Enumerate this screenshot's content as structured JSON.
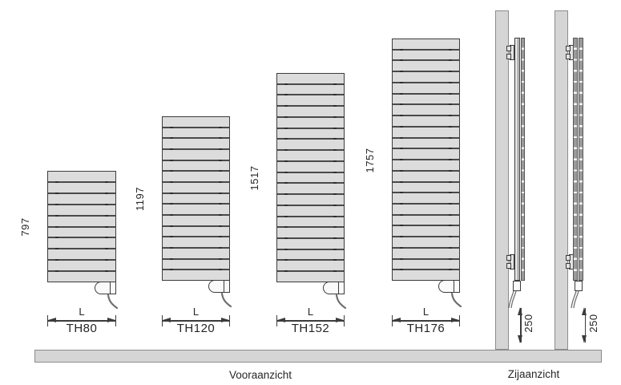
{
  "diagram": {
    "front_view_caption": "Vooraanzicht",
    "side_view_caption": "Zijaanzicht",
    "width_label": "L",
    "radiators": [
      {
        "model": "TH80",
        "height_mm": "797",
        "slats": 10
      },
      {
        "model": "TH120",
        "height_mm": "1197",
        "slats": 15
      },
      {
        "model": "TH152",
        "height_mm": "1517",
        "slats": 19
      },
      {
        "model": "TH176",
        "height_mm": "1757",
        "slats": 22
      }
    ],
    "side_views": [
      {
        "floor_clearance_mm": "250"
      },
      {
        "floor_clearance_mm": "250"
      }
    ],
    "colors": {
      "radiator_fill": "#dcdcdc",
      "outline": "#3c3c3c",
      "wall_fill": "#d5d5d5",
      "wall_outline": "#8c8c8c",
      "text": "#262626"
    }
  }
}
